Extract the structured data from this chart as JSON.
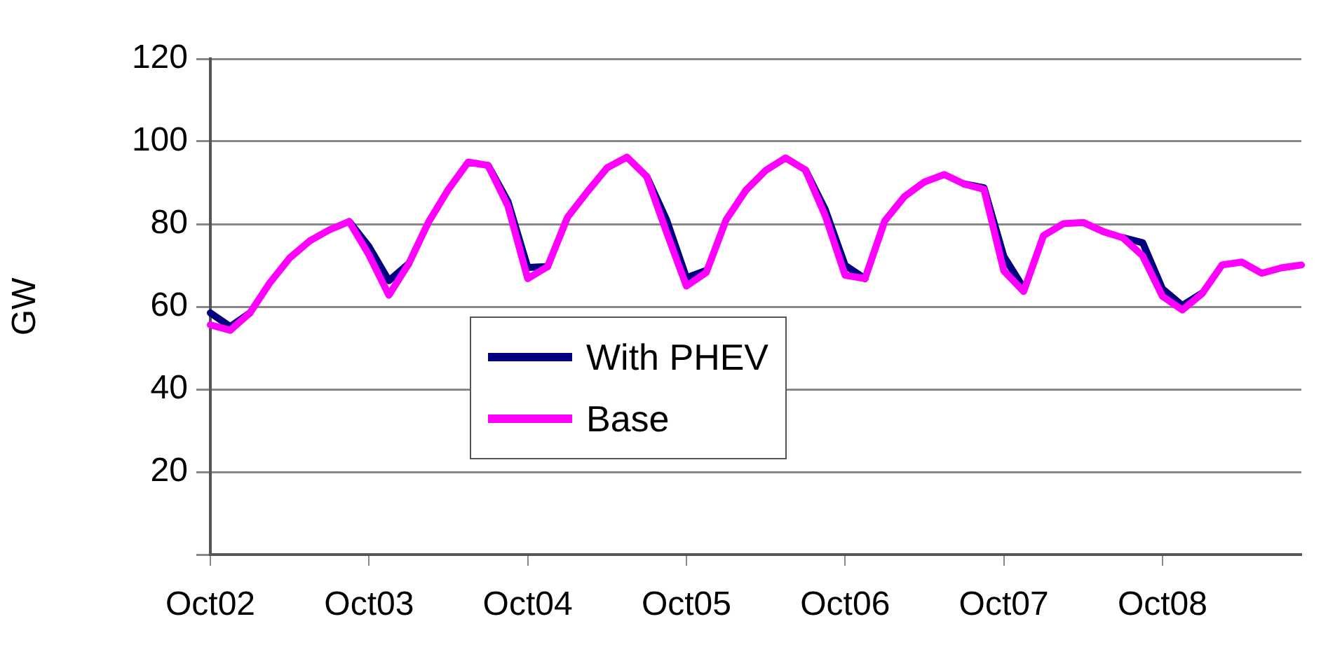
{
  "chart_data": {
    "type": "line",
    "ylabel": "GW",
    "legend": "center",
    "grid": "y",
    "marker": "none",
    "line_style": "solid",
    "categories": [
      "Oct02",
      null,
      null,
      null,
      null,
      null,
      null,
      null,
      "Oct03",
      null,
      null,
      null,
      null,
      null,
      null,
      null,
      "Oct04",
      null,
      null,
      null,
      null,
      null,
      null,
      null,
      "Oct05",
      null,
      null,
      null,
      null,
      null,
      null,
      null,
      "Oct06",
      null,
      null,
      null,
      null,
      null,
      null,
      null,
      "Oct07",
      null,
      null,
      null,
      null,
      null,
      null,
      null,
      "Oct08",
      null,
      null,
      null,
      null,
      null,
      null,
      null
    ],
    "ylim": [
      0,
      120
    ],
    "yticks": [
      {
        "value": 0,
        "label": null
      },
      20,
      40,
      60,
      80,
      100,
      120
    ],
    "series": [
      {
        "name": "With PHEV",
        "color": "#000080",
        "values": [
          58.5,
          55.2,
          58.5,
          null,
          null,
          null,
          null,
          80.6,
          74.5,
          66.3,
          70.4,
          null,
          null,
          null,
          94.2,
          85.5,
          69.5,
          69.7,
          null,
          null,
          null,
          null,
          91.5,
          81,
          67,
          68.8,
          null,
          null,
          null,
          null,
          93.1,
          83.5,
          70,
          66.8,
          null,
          null,
          null,
          null,
          89.7,
          88.8,
          72.2,
          64.5,
          null,
          null,
          null,
          null,
          76.7,
          75.5,
          64.3,
          60.3,
          63.3,
          null,
          null,
          null,
          null,
          null
        ]
      },
      {
        "name": "Base",
        "color": "#ff00ff",
        "values": [
          55.6,
          54.3,
          58.5,
          65.8,
          71.8,
          75.9,
          78.6,
          80.6,
          72.5,
          62.8,
          70.4,
          80.5,
          88.4,
          95,
          94.2,
          84.4,
          66.8,
          69.7,
          81.6,
          87.8,
          93.6,
          96.2,
          91.5,
          78,
          65,
          68.3,
          81,
          88.2,
          93,
          96,
          93.1,
          82,
          67.6,
          66.8,
          80.8,
          86.7,
          90.2,
          92,
          89.7,
          88.4,
          68.7,
          63.7,
          77.2,
          80.1,
          80.4,
          78.2,
          76.7,
          72.3,
          62.5,
          59.2,
          63.2,
          70.1,
          70.8,
          68.1,
          69.4,
          70.1
        ]
      }
    ]
  }
}
